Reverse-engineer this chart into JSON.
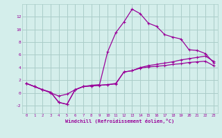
{
  "title": "",
  "xlabel": "Windchill (Refroidissement éolien,°C)",
  "background_color": "#d4eeeb",
  "grid_color": "#aaccc8",
  "line_color": "#990099",
  "xlim": [
    -0.5,
    23.5
  ],
  "ylim": [
    -3.2,
    14.0
  ],
  "yticks": [
    -2,
    0,
    2,
    4,
    6,
    8,
    10,
    12
  ],
  "xticks": [
    0,
    1,
    2,
    3,
    4,
    5,
    6,
    7,
    8,
    9,
    10,
    11,
    12,
    13,
    14,
    15,
    16,
    17,
    18,
    19,
    20,
    21,
    22,
    23
  ],
  "series1_x": [
    0,
    1,
    2,
    3,
    4,
    5,
    6,
    7,
    8,
    9,
    10,
    11,
    12,
    13,
    14,
    15,
    16,
    17,
    18,
    19,
    20,
    21,
    22,
    23
  ],
  "series1_y": [
    1.5,
    1.0,
    0.5,
    0.1,
    -1.5,
    -1.8,
    0.5,
    1.0,
    1.1,
    1.2,
    1.3,
    1.4,
    3.3,
    3.5,
    3.9,
    4.1,
    4.2,
    4.3,
    4.5,
    4.6,
    4.8,
    4.9,
    5.0,
    4.3
  ],
  "series2_x": [
    0,
    1,
    2,
    3,
    4,
    5,
    6,
    7,
    8,
    9,
    10,
    11,
    12,
    13,
    14,
    15,
    16,
    17,
    18,
    19,
    20,
    21,
    22,
    23
  ],
  "series2_y": [
    1.5,
    1.0,
    0.5,
    0.0,
    -0.5,
    -0.2,
    0.5,
    1.0,
    1.2,
    1.3,
    6.5,
    9.5,
    11.2,
    13.2,
    12.5,
    11.0,
    10.5,
    9.2,
    8.8,
    8.5,
    6.8,
    6.7,
    6.2,
    4.8
  ],
  "series3_x": [
    0,
    1,
    2,
    3,
    4,
    5,
    6,
    7,
    8,
    9,
    10,
    11,
    12,
    13,
    14,
    15,
    16,
    17,
    18,
    19,
    20,
    21,
    22,
    23
  ],
  "series3_y": [
    1.5,
    1.0,
    0.5,
    0.1,
    -1.5,
    -1.8,
    0.5,
    1.0,
    1.1,
    1.2,
    1.3,
    1.5,
    3.3,
    3.5,
    4.0,
    4.3,
    4.5,
    4.7,
    4.9,
    5.2,
    5.4,
    5.6,
    5.8,
    5.0
  ]
}
